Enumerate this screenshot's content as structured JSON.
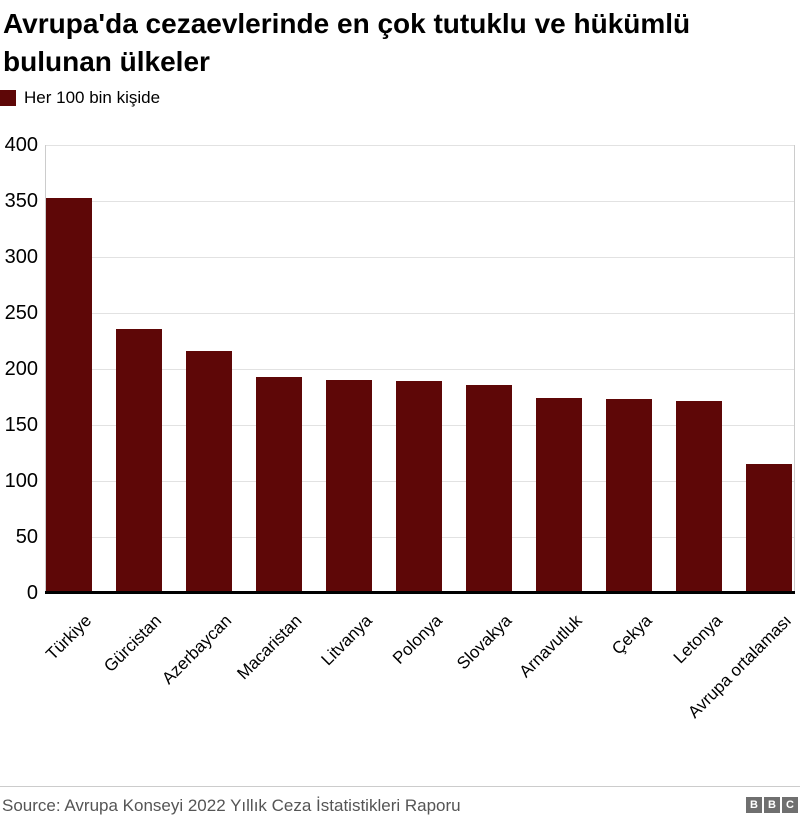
{
  "header": {
    "title_lines": [
      "Avrupa'da cezaevlerinde en çok tutuklu ve hükümlü",
      "bulunan ülkeler"
    ]
  },
  "legend": {
    "label": "Her 100 bin kişide",
    "swatch_color": "#5e0707"
  },
  "chart_data": {
    "type": "bar",
    "title": "Avrupa'da cezaevlerinde en çok tutuklu ve hükümlü bulunan ülkeler",
    "unit_label": "Her 100 bin kişide",
    "categories": [
      "Türkiye",
      "Gürcistan",
      "Azerbaycan",
      "Macaristan",
      "Litvanya",
      "Polonya",
      "Slovakya",
      "Arnavutluk",
      "Çekya",
      "Letonya",
      "Avrupa ortalaması"
    ],
    "values": [
      353,
      236,
      216,
      193,
      190,
      189,
      186,
      174,
      173,
      171,
      115
    ],
    "xlabel": "",
    "ylabel": "",
    "ylim": [
      0,
      400
    ],
    "ytick_step": 50,
    "grid": true,
    "legend_position": "top-left",
    "bar_color": "#5e0707",
    "gridline_color": "#e2e2e2",
    "axis_color": "#000000"
  },
  "footer": {
    "source": "Source: Avrupa Konseyi 2022 Yıllık Ceza İstatistikleri Raporu",
    "logo_letters": [
      "B",
      "B",
      "C"
    ]
  }
}
